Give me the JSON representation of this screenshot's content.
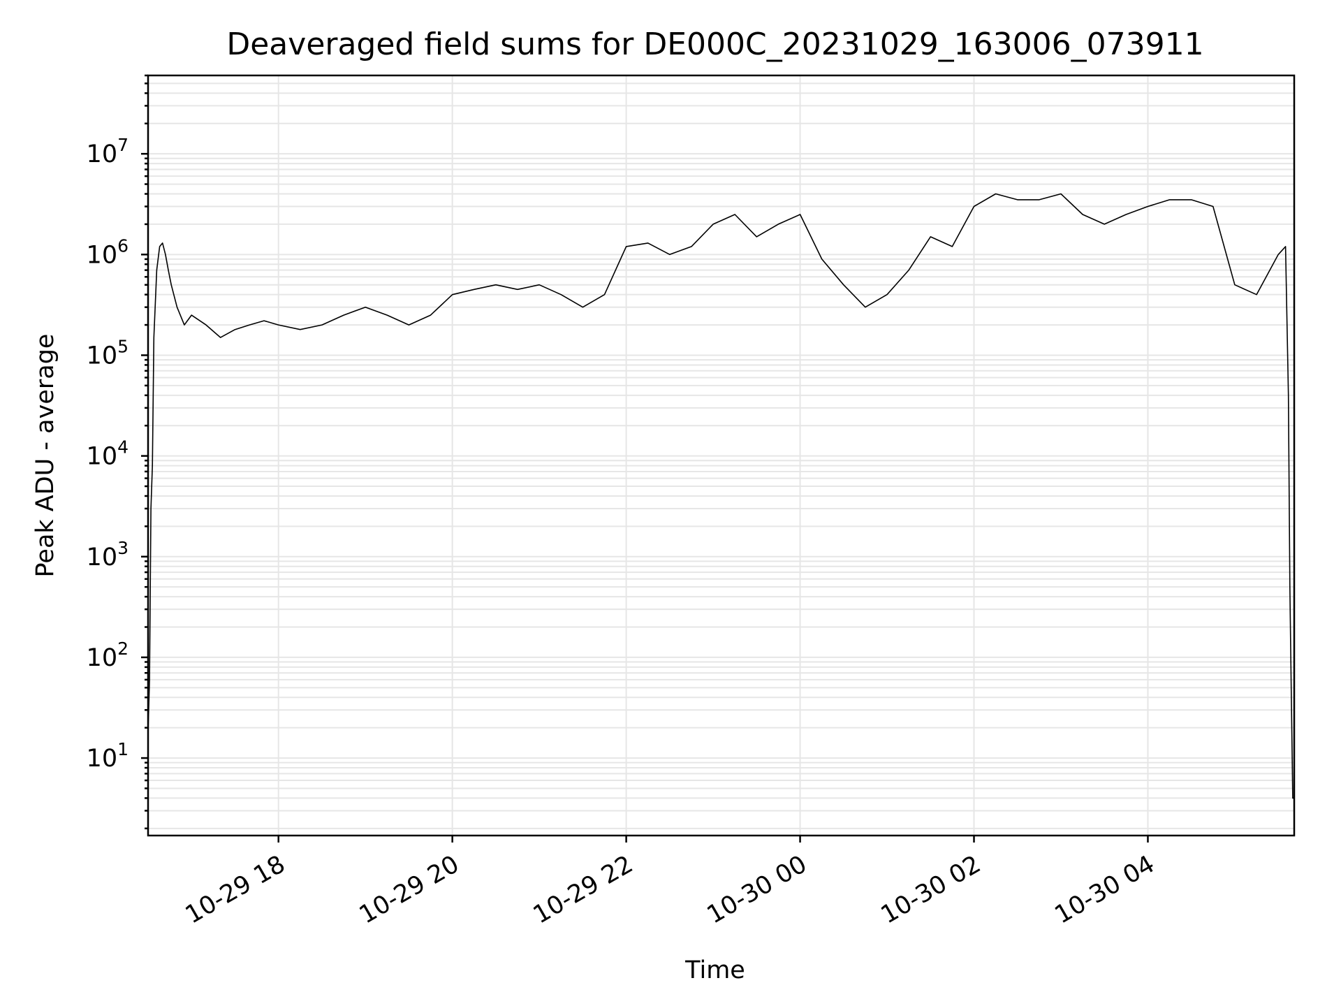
{
  "chart_data": {
    "type": "line",
    "title": "Deaveraged field sums for DE000C_20231029_163006_073911",
    "xlabel": "Time",
    "ylabel": "Peak ADU - average",
    "yscale": "log",
    "ylim": [
      1.7,
      60000000
    ],
    "xlim": [
      "2023-10-29 16:30",
      "2023-10-30 05:41"
    ],
    "grid": true,
    "line_color": "#000000",
    "xticks": [
      {
        "time": "2023-10-29 18:00",
        "label": "10-29 18"
      },
      {
        "time": "2023-10-29 20:00",
        "label": "10-29 20"
      },
      {
        "time": "2023-10-29 22:00",
        "label": "10-29 22"
      },
      {
        "time": "2023-10-30 00:00",
        "label": "10-30 00"
      },
      {
        "time": "2023-10-30 02:00",
        "label": "10-30 02"
      },
      {
        "time": "2023-10-30 04:00",
        "label": "10-30 04"
      }
    ],
    "yticks": [
      {
        "value": 10,
        "base": "10",
        "exp": "1"
      },
      {
        "value": 100,
        "base": "10",
        "exp": "2"
      },
      {
        "value": 1000,
        "base": "10",
        "exp": "3"
      },
      {
        "value": 10000,
        "base": "10",
        "exp": "4"
      },
      {
        "value": 100000,
        "base": "10",
        "exp": "5"
      },
      {
        "value": 1000000,
        "base": "10",
        "exp": "6"
      },
      {
        "value": 10000000,
        "base": "10",
        "exp": "7"
      }
    ],
    "series": [
      {
        "x": [
          "2023-10-29 16:30",
          "2023-10-29 16:31",
          "2023-10-29 16:32",
          "2023-10-29 16:33",
          "2023-10-29 16:34",
          "2023-10-29 16:36",
          "2023-10-29 16:38",
          "2023-10-29 16:40",
          "2023-10-29 16:42",
          "2023-10-29 16:44",
          "2023-10-29 16:46",
          "2023-10-29 16:50",
          "2023-10-29 16:55",
          "2023-10-29 17:00",
          "2023-10-29 17:10",
          "2023-10-29 17:20",
          "2023-10-29 17:30",
          "2023-10-29 17:40",
          "2023-10-29 17:50",
          "2023-10-29 18:00",
          "2023-10-29 18:15",
          "2023-10-29 18:30",
          "2023-10-29 18:45",
          "2023-10-29 19:00",
          "2023-10-29 19:15",
          "2023-10-29 19:30",
          "2023-10-29 19:45",
          "2023-10-29 20:00",
          "2023-10-29 20:15",
          "2023-10-29 20:30",
          "2023-10-29 20:45",
          "2023-10-29 21:00",
          "2023-10-29 21:15",
          "2023-10-29 21:30",
          "2023-10-29 21:45",
          "2023-10-29 22:00",
          "2023-10-29 22:15",
          "2023-10-29 22:30",
          "2023-10-29 22:45",
          "2023-10-29 23:00",
          "2023-10-29 23:15",
          "2023-10-29 23:30",
          "2023-10-29 23:45",
          "2023-10-30 00:00",
          "2023-10-30 00:15",
          "2023-10-30 00:30",
          "2023-10-30 00:45",
          "2023-10-30 01:00",
          "2023-10-30 01:15",
          "2023-10-30 01:30",
          "2023-10-30 01:45",
          "2023-10-30 02:00",
          "2023-10-30 02:15",
          "2023-10-30 02:30",
          "2023-10-30 02:45",
          "2023-10-30 03:00",
          "2023-10-30 03:15",
          "2023-10-30 03:30",
          "2023-10-30 03:45",
          "2023-10-30 04:00",
          "2023-10-30 04:15",
          "2023-10-30 04:30",
          "2023-10-30 04:45",
          "2023-10-30 05:00",
          "2023-10-30 05:15",
          "2023-10-30 05:30",
          "2023-10-30 05:35",
          "2023-10-30 05:37",
          "2023-10-30 05:38",
          "2023-10-30 05:39",
          "2023-10-30 05:40",
          "2023-10-30 05:41"
        ],
        "y": [
          18,
          60,
          3000,
          8000,
          150000,
          700000,
          1200000,
          1300000,
          1000000,
          700000,
          500000,
          300000,
          200000,
          250000,
          200000,
          150000,
          180000,
          200000,
          220000,
          200000,
          180000,
          200000,
          250000,
          300000,
          250000,
          200000,
          250000,
          400000,
          450000,
          500000,
          450000,
          500000,
          400000,
          300000,
          400000,
          1200000,
          1300000,
          1000000,
          1200000,
          2000000,
          2500000,
          1500000,
          2000000,
          2500000,
          900000,
          500000,
          300000,
          400000,
          700000,
          1500000,
          1200000,
          3000000,
          4000000,
          3500000,
          3500000,
          4000000,
          2500000,
          2000000,
          2500000,
          3000000,
          3500000,
          3500000,
          3000000,
          500000,
          400000,
          1000000,
          1200000,
          40000,
          500,
          40,
          4,
          4
        ]
      }
    ]
  }
}
